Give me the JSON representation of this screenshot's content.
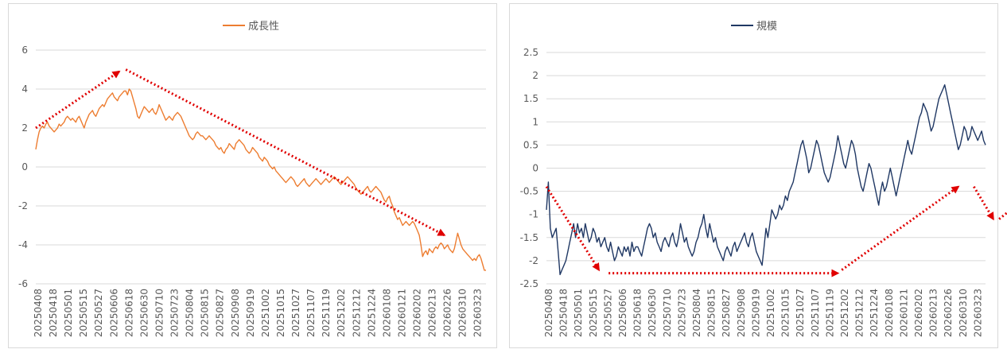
{
  "chart_data": [
    {
      "type": "line",
      "title": "",
      "series": [
        {
          "name": "成長性",
          "color": "#ed7d31"
        }
      ],
      "ylim": [
        -6,
        6
      ],
      "yticks": [
        "6",
        "4",
        "2",
        "0",
        "-2",
        "-4",
        "-6"
      ],
      "grid": true,
      "legend_position": "top",
      "x_tick_labels": [
        "20250408",
        "20250418",
        "20250501",
        "20250515",
        "20250527",
        "20250606",
        "20250618",
        "20250630",
        "20250710",
        "20250723",
        "20250804",
        "20250815",
        "20250827",
        "20250908",
        "20250919",
        "20251002",
        "20251015",
        "20251027",
        "20251107",
        "20251119",
        "20251202",
        "20251212",
        "20251224",
        "20260108",
        "20260121",
        "20260202",
        "20260213",
        "20260226",
        "20260310",
        "20260323"
      ],
      "values": [
        0.9,
        1.4,
        1.8,
        2.0,
        2.1,
        2.0,
        2.2,
        2.3,
        2.1,
        2.0,
        1.9,
        1.8,
        1.9,
        2.0,
        2.2,
        2.1,
        2.2,
        2.3,
        2.5,
        2.6,
        2.5,
        2.4,
        2.5,
        2.4,
        2.3,
        2.5,
        2.6,
        2.4,
        2.2,
        2.0,
        2.3,
        2.5,
        2.7,
        2.8,
        2.9,
        2.7,
        2.6,
        2.8,
        3.0,
        3.1,
        3.2,
        3.1,
        3.3,
        3.5,
        3.6,
        3.7,
        3.8,
        3.6,
        3.5,
        3.4,
        3.6,
        3.7,
        3.8,
        3.9,
        3.9,
        3.7,
        4.0,
        3.9,
        3.6,
        3.3,
        3.0,
        2.6,
        2.5,
        2.7,
        2.9,
        3.1,
        3.0,
        2.9,
        2.8,
        2.9,
        3.0,
        2.8,
        2.7,
        2.9,
        3.2,
        3.0,
        2.8,
        2.6,
        2.4,
        2.5,
        2.6,
        2.5,
        2.4,
        2.6,
        2.7,
        2.8,
        2.7,
        2.6,
        2.4,
        2.2,
        2.0,
        1.8,
        1.6,
        1.5,
        1.4,
        1.5,
        1.7,
        1.8,
        1.7,
        1.6,
        1.6,
        1.5,
        1.4,
        1.5,
        1.6,
        1.5,
        1.4,
        1.3,
        1.1,
        1.0,
        0.9,
        1.0,
        0.8,
        0.7,
        0.9,
        1.0,
        1.2,
        1.1,
        1.0,
        0.9,
        1.2,
        1.3,
        1.4,
        1.3,
        1.2,
        1.1,
        0.9,
        0.8,
        0.7,
        0.8,
        1.0,
        0.9,
        0.8,
        0.7,
        0.5,
        0.4,
        0.3,
        0.5,
        0.4,
        0.3,
        0.1,
        0.0,
        -0.1,
        0.0,
        -0.2,
        -0.3,
        -0.4,
        -0.5,
        -0.6,
        -0.7,
        -0.8,
        -0.7,
        -0.6,
        -0.5,
        -0.6,
        -0.7,
        -0.9,
        -1.0,
        -0.9,
        -0.8,
        -0.7,
        -0.6,
        -0.8,
        -0.9,
        -1.0,
        -0.9,
        -0.8,
        -0.7,
        -0.6,
        -0.7,
        -0.8,
        -0.9,
        -0.8,
        -0.7,
        -0.6,
        -0.7,
        -0.8,
        -0.7,
        -0.6,
        -0.5,
        -0.6,
        -0.7,
        -0.8,
        -0.9,
        -0.8,
        -0.7,
        -0.6,
        -0.5,
        -0.6,
        -0.7,
        -0.8,
        -0.9,
        -1.1,
        -1.2,
        -1.3,
        -1.4,
        -1.3,
        -1.2,
        -1.1,
        -1.0,
        -1.2,
        -1.3,
        -1.2,
        -1.1,
        -1.0,
        -1.1,
        -1.2,
        -1.3,
        -1.5,
        -1.7,
        -1.8,
        -1.6,
        -1.5,
        -1.8,
        -2.0,
        -2.3,
        -2.5,
        -2.7,
        -2.6,
        -2.8,
        -3.0,
        -2.9,
        -2.8,
        -2.9,
        -3.0,
        -2.9,
        -2.8,
        -2.9,
        -3.1,
        -3.3,
        -3.5,
        -4.0,
        -4.6,
        -4.4,
        -4.3,
        -4.5,
        -4.2,
        -4.3,
        -4.4,
        -4.2,
        -4.1,
        -4.2,
        -4.0,
        -3.9,
        -4.0,
        -4.2,
        -4.1,
        -4.0,
        -4.2,
        -4.3,
        -4.4,
        -4.2,
        -3.8,
        -3.4,
        -3.7,
        -4.0,
        -4.2,
        -4.3,
        -4.4,
        -4.5,
        -4.6,
        -4.7,
        -4.8,
        -4.7,
        -4.8,
        -4.6,
        -4.5,
        -4.7,
        -5.0,
        -5.3,
        -5.3
      ],
      "annotations": [
        {
          "from": [
            0,
            2.0
          ],
          "to": [
            50,
            4.9
          ]
        },
        {
          "from": [
            54,
            5.0
          ],
          "to": [
            245,
            -3.5
          ]
        }
      ]
    },
    {
      "type": "line",
      "title": "",
      "series": [
        {
          "name": "規模",
          "color": "#203864"
        }
      ],
      "ylim": [
        -2.5,
        2.5
      ],
      "yticks": [
        "2.5",
        "2",
        "1.5",
        "1",
        "0.5",
        "0",
        "-0.5",
        "-1",
        "-1.5",
        "-2",
        "-2.5"
      ],
      "grid": true,
      "legend_position": "top",
      "x_tick_labels": [
        "20250408",
        "20250418",
        "20250501",
        "20250515",
        "20250527",
        "20250606",
        "20250618",
        "20250630",
        "20250710",
        "20250723",
        "20250804",
        "20250815",
        "20250827",
        "20250908",
        "20250919",
        "20251002",
        "20251015",
        "20251027",
        "20251107",
        "20251119",
        "20251202",
        "20251212",
        "20251224",
        "20260108",
        "20260121",
        "20260202",
        "20260213",
        "20260226",
        "20260310",
        "20260323"
      ],
      "values": [
        -0.9,
        -0.3,
        -1.3,
        -1.5,
        -1.4,
        -1.3,
        -1.8,
        -2.3,
        -2.2,
        -2.1,
        -2.0,
        -1.8,
        -1.6,
        -1.4,
        -1.2,
        -1.5,
        -1.2,
        -1.4,
        -1.3,
        -1.5,
        -1.2,
        -1.4,
        -1.6,
        -1.5,
        -1.3,
        -1.4,
        -1.6,
        -1.5,
        -1.7,
        -1.6,
        -1.5,
        -1.7,
        -1.8,
        -1.6,
        -1.8,
        -2.0,
        -1.9,
        -1.7,
        -1.8,
        -1.9,
        -1.7,
        -1.8,
        -1.7,
        -1.9,
        -1.6,
        -1.8,
        -1.7,
        -1.7,
        -1.8,
        -1.9,
        -1.7,
        -1.5,
        -1.3,
        -1.2,
        -1.3,
        -1.5,
        -1.4,
        -1.6,
        -1.7,
        -1.8,
        -1.6,
        -1.5,
        -1.6,
        -1.7,
        -1.5,
        -1.4,
        -1.6,
        -1.7,
        -1.5,
        -1.2,
        -1.4,
        -1.6,
        -1.5,
        -1.7,
        -1.8,
        -1.9,
        -1.8,
        -1.6,
        -1.5,
        -1.3,
        -1.2,
        -1.0,
        -1.3,
        -1.5,
        -1.2,
        -1.4,
        -1.6,
        -1.5,
        -1.7,
        -1.8,
        -1.9,
        -2.0,
        -1.8,
        -1.7,
        -1.8,
        -1.9,
        -1.7,
        -1.6,
        -1.8,
        -1.7,
        -1.6,
        -1.5,
        -1.4,
        -1.6,
        -1.7,
        -1.5,
        -1.4,
        -1.6,
        -1.8,
        -1.9,
        -2.0,
        -2.1,
        -1.7,
        -1.3,
        -1.5,
        -1.2,
        -0.9,
        -1.0,
        -1.1,
        -1.0,
        -0.8,
        -0.9,
        -0.8,
        -0.6,
        -0.7,
        -0.5,
        -0.4,
        -0.3,
        -0.1,
        0.1,
        0.3,
        0.5,
        0.6,
        0.4,
        0.2,
        -0.1,
        0.0,
        0.2,
        0.4,
        0.6,
        0.5,
        0.3,
        0.1,
        -0.1,
        -0.2,
        -0.3,
        -0.2,
        0.0,
        0.2,
        0.4,
        0.7,
        0.5,
        0.3,
        0.1,
        0.0,
        0.2,
        0.4,
        0.6,
        0.5,
        0.3,
        0.0,
        -0.2,
        -0.4,
        -0.5,
        -0.3,
        -0.1,
        0.1,
        0.0,
        -0.2,
        -0.4,
        -0.6,
        -0.8,
        -0.5,
        -0.3,
        -0.5,
        -0.4,
        -0.2,
        0.0,
        -0.2,
        -0.4,
        -0.6,
        -0.4,
        -0.2,
        0.0,
        0.2,
        0.4,
        0.6,
        0.4,
        0.3,
        0.5,
        0.7,
        0.9,
        1.1,
        1.2,
        1.4,
        1.3,
        1.2,
        1.0,
        0.8,
        0.9,
        1.1,
        1.3,
        1.5,
        1.6,
        1.7,
        1.8,
        1.6,
        1.4,
        1.2,
        1.0,
        0.8,
        0.6,
        0.4,
        0.5,
        0.7,
        0.9,
        0.8,
        0.6,
        0.7,
        0.9,
        0.8,
        0.7,
        0.6,
        0.7,
        0.8,
        0.6,
        0.5
      ],
      "annotations": [
        {
          "from": [
            0,
            -0.4
          ],
          "to": [
            27,
            -2.2
          ]
        },
        {
          "from": [
            32,
            -2.27
          ],
          "to": [
            150,
            -2.27
          ]
        },
        {
          "from": [
            152,
            -2.2
          ],
          "to": [
            212,
            -0.4
          ]
        },
        {
          "from": [
            220,
            -0.4
          ],
          "to": [
            230,
            -1.1
          ]
        },
        {
          "from": [
            233,
            -1.1
          ],
          "to": [
            260,
            -0.2
          ]
        },
        {
          "from": [
            264,
            -0.2
          ],
          "to": [
            277,
            1.35
          ]
        },
        {
          "from": [
            278,
            1.3
          ],
          "to": [
            283,
            0.1
          ]
        },
        {
          "from": [
            285,
            0.1
          ],
          "to": [
            305,
            0.22
          ]
        }
      ]
    }
  ]
}
